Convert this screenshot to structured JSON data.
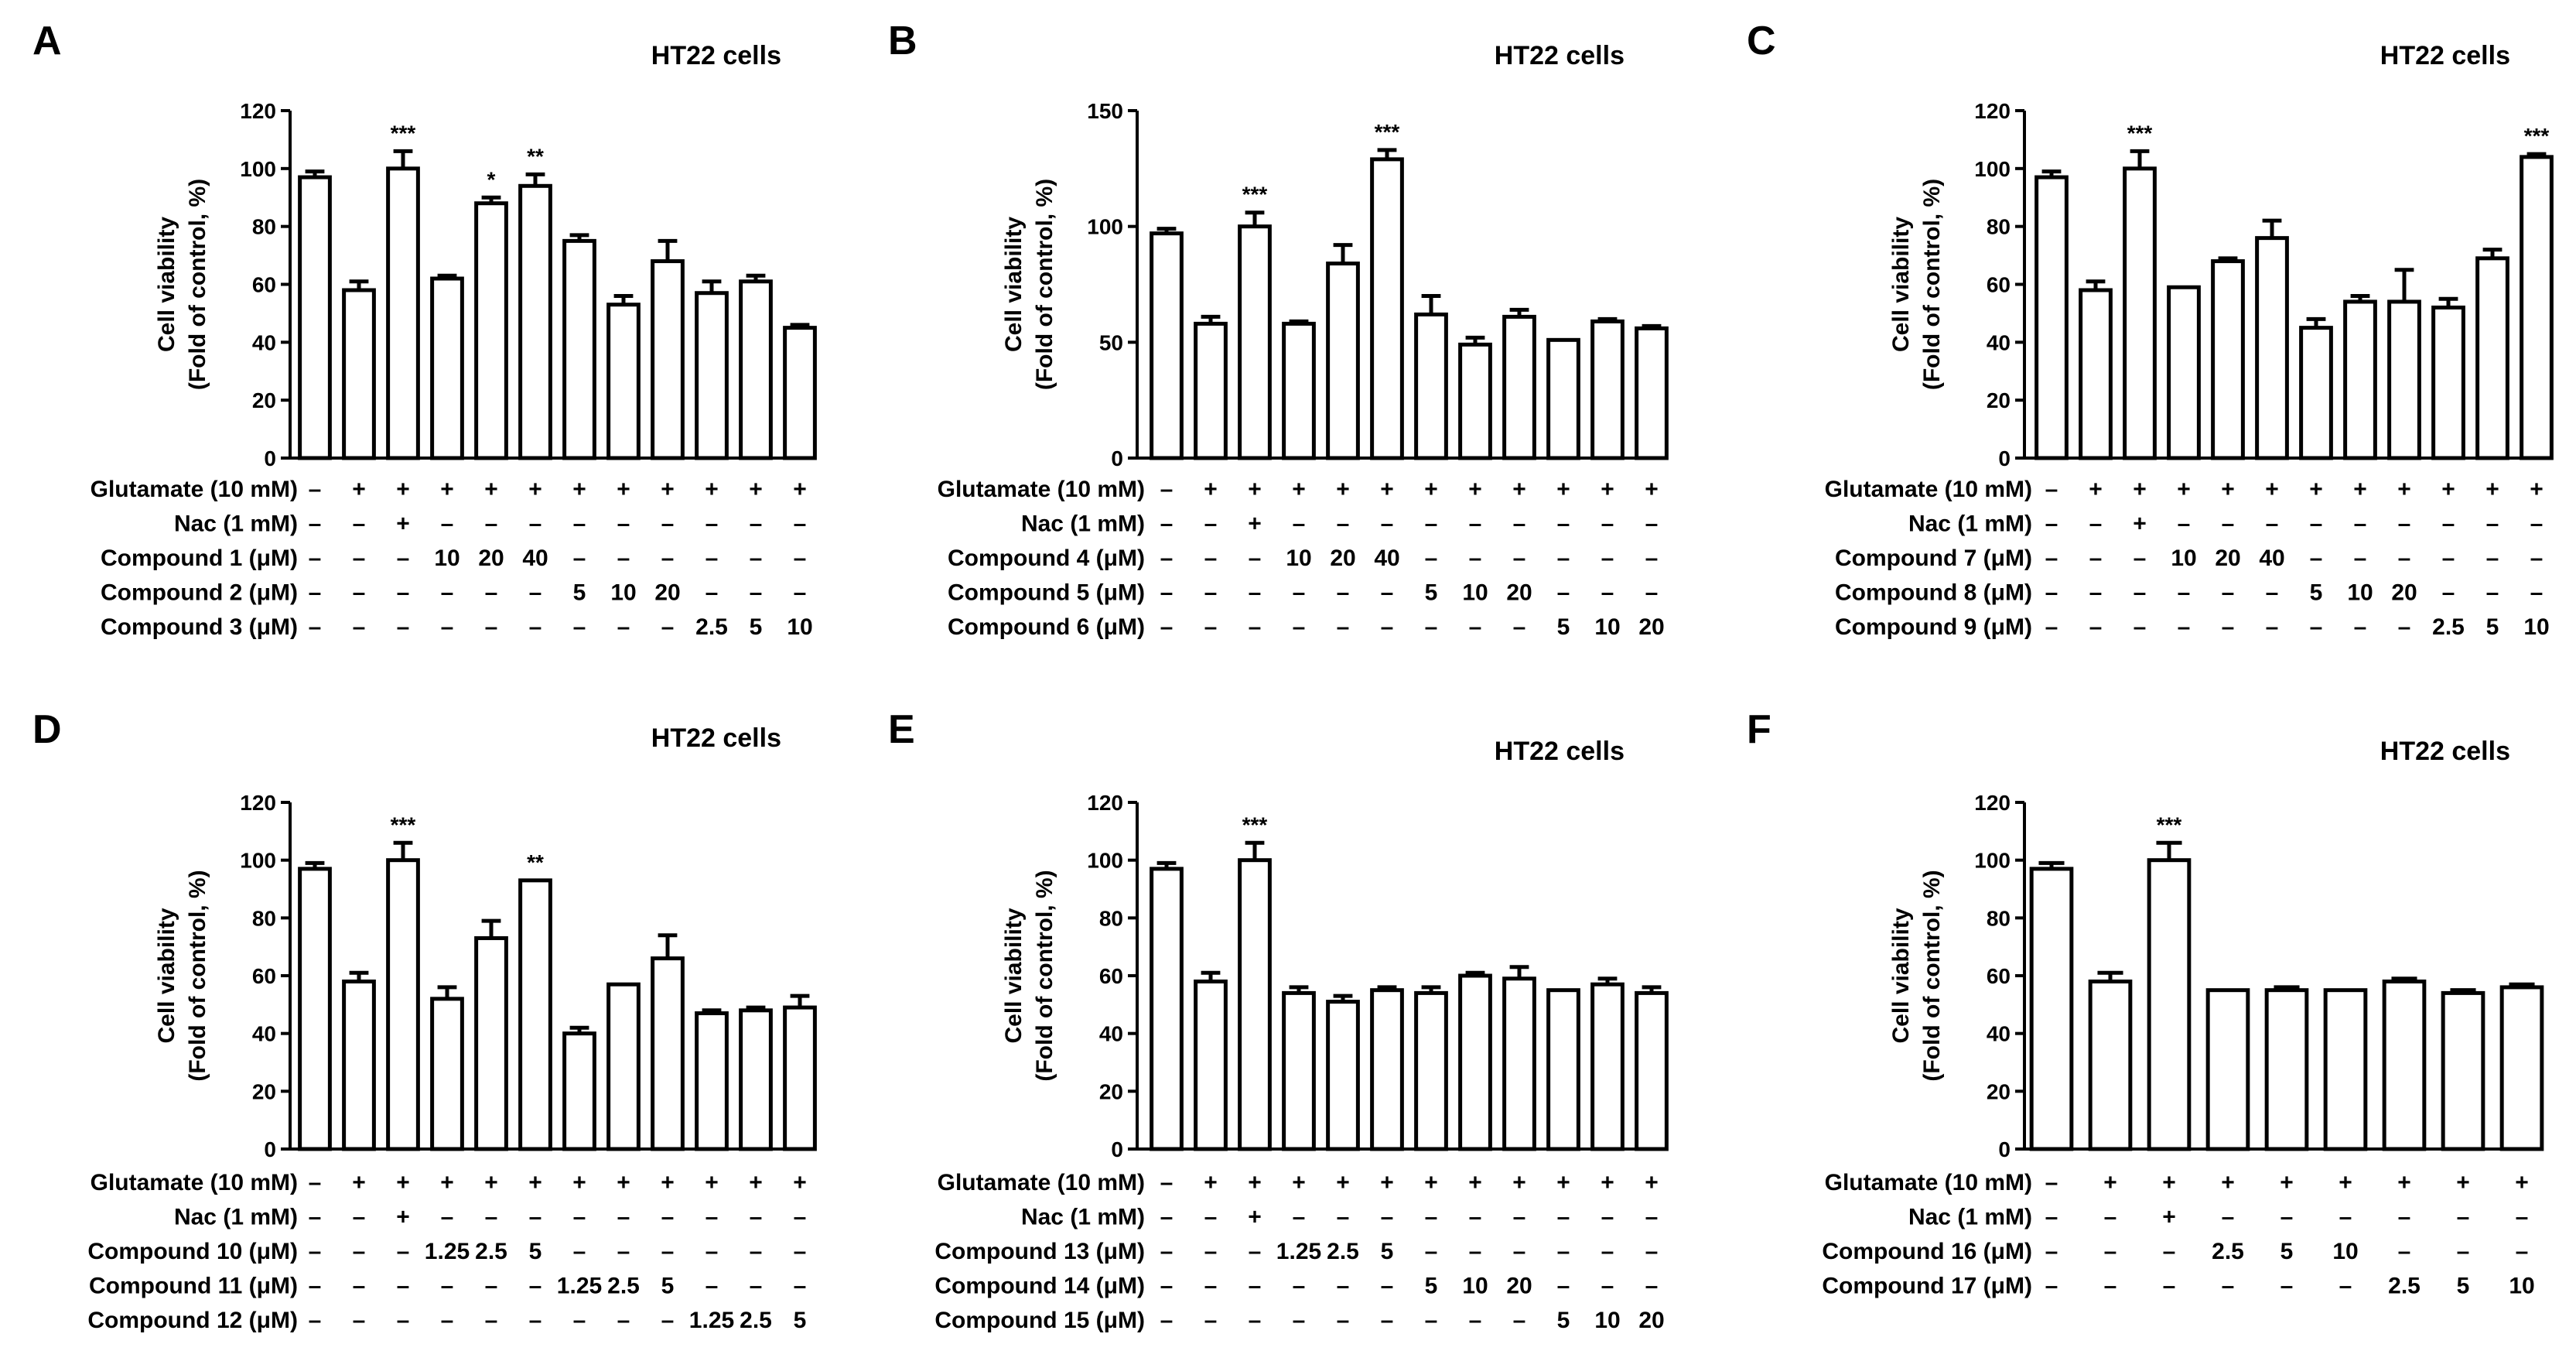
{
  "chart_data": [
    {
      "type": "bar",
      "label": "A",
      "title": "HT22 cells",
      "ylabel": [
        "Cell viability",
        "(Fold of control, %)"
      ],
      "ylim": [
        0,
        120
      ],
      "yticks": [
        "0",
        "20",
        "40",
        "60",
        "80",
        "100",
        "120"
      ],
      "values": [
        97,
        58,
        100,
        62,
        88,
        94,
        75,
        53,
        68,
        57,
        61,
        45
      ],
      "errors": [
        2,
        3,
        6,
        1,
        2,
        4,
        2,
        3,
        7,
        4,
        2,
        1
      ],
      "significance": [
        "",
        "",
        "***",
        "",
        "*",
        "**",
        "",
        "",
        "",
        "",
        "",
        ""
      ],
      "rows": [
        {
          "label": "Glutamate (10 mM)",
          "cells": [
            "–",
            "+",
            "+",
            "+",
            "+",
            "+",
            "+",
            "+",
            "+",
            "+",
            "+",
            "+"
          ]
        },
        {
          "label": "Nac (1 mM)",
          "cells": [
            "–",
            "–",
            "+",
            "–",
            "–",
            "–",
            "–",
            "–",
            "–",
            "–",
            "–",
            "–"
          ]
        },
        {
          "label": "Compound 1 (μM)",
          "cells": [
            "–",
            "–",
            "–",
            "10",
            "20",
            "40",
            "–",
            "–",
            "–",
            "–",
            "–",
            "–"
          ]
        },
        {
          "label": "Compound 2 (μM)",
          "cells": [
            "–",
            "–",
            "–",
            "–",
            "–",
            "–",
            "5",
            "10",
            "20",
            "–",
            "–",
            "–"
          ]
        },
        {
          "label": "Compound 3 (μM)",
          "cells": [
            "–",
            "–",
            "–",
            "–",
            "–",
            "–",
            "–",
            "–",
            "–",
            "2.5",
            "5",
            "10"
          ]
        }
      ]
    },
    {
      "type": "bar",
      "label": "B",
      "title": "HT22 cells",
      "ylabel": [
        "Cell viability",
        "(Fold of control, %)"
      ],
      "ylim": [
        0,
        150
      ],
      "yticks": [
        "0",
        "50",
        "100",
        "150"
      ],
      "values": [
        97,
        58,
        100,
        58,
        84,
        129,
        62,
        49,
        61,
        51,
        59,
        56
      ],
      "errors": [
        2,
        3,
        6,
        1,
        8,
        4,
        8,
        3,
        3,
        0,
        1,
        1
      ],
      "significance": [
        "",
        "",
        "***",
        "",
        "",
        "***",
        "",
        "",
        "",
        "",
        "",
        ""
      ],
      "rows": [
        {
          "label": "Glutamate (10 mM)",
          "cells": [
            "–",
            "+",
            "+",
            "+",
            "+",
            "+",
            "+",
            "+",
            "+",
            "+",
            "+",
            "+"
          ]
        },
        {
          "label": "Nac (1 mM)",
          "cells": [
            "–",
            "–",
            "+",
            "–",
            "–",
            "–",
            "–",
            "–",
            "–",
            "–",
            "–",
            "–"
          ]
        },
        {
          "label": "Compound 4 (μM)",
          "cells": [
            "–",
            "–",
            "–",
            "10",
            "20",
            "40",
            "–",
            "–",
            "–",
            "–",
            "–",
            "–"
          ]
        },
        {
          "label": "Compound 5 (μM)",
          "cells": [
            "–",
            "–",
            "–",
            "–",
            "–",
            "–",
            "5",
            "10",
            "20",
            "–",
            "–",
            "–"
          ]
        },
        {
          "label": "Compound 6 (μM)",
          "cells": [
            "–",
            "–",
            "–",
            "–",
            "–",
            "–",
            "–",
            "–",
            "–",
            "5",
            "10",
            "20"
          ]
        }
      ]
    },
    {
      "type": "bar",
      "label": "C",
      "title": "HT22 cells",
      "ylabel": [
        "Cell viability",
        "(Fold of control, %)"
      ],
      "ylim": [
        0,
        120
      ],
      "yticks": [
        "0",
        "20",
        "40",
        "60",
        "80",
        "100",
        "120"
      ],
      "values": [
        97,
        58,
        100,
        59,
        68,
        76,
        45,
        54,
        54,
        52,
        69,
        104
      ],
      "errors": [
        2,
        3,
        6,
        0,
        1,
        6,
        3,
        2,
        11,
        3,
        3,
        1
      ],
      "significance": [
        "",
        "",
        "***",
        "",
        "",
        "",
        "",
        "",
        "",
        "",
        "",
        "***"
      ],
      "rows": [
        {
          "label": "Glutamate (10 mM)",
          "cells": [
            "–",
            "+",
            "+",
            "+",
            "+",
            "+",
            "+",
            "+",
            "+",
            "+",
            "+",
            "+"
          ]
        },
        {
          "label": "Nac (1 mM)",
          "cells": [
            "–",
            "–",
            "+",
            "–",
            "–",
            "–",
            "–",
            "–",
            "–",
            "–",
            "–",
            "–"
          ]
        },
        {
          "label": "Compound 7 (μM)",
          "cells": [
            "–",
            "–",
            "–",
            "10",
            "20",
            "40",
            "–",
            "–",
            "–",
            "–",
            "–",
            "–"
          ]
        },
        {
          "label": "Compound 8 (μM)",
          "cells": [
            "–",
            "–",
            "–",
            "–",
            "–",
            "–",
            "5",
            "10",
            "20",
            "–",
            "–",
            "–"
          ]
        },
        {
          "label": "Compound 9 (μM)",
          "cells": [
            "–",
            "–",
            "–",
            "–",
            "–",
            "–",
            "–",
            "–",
            "–",
            "2.5",
            "5",
            "10"
          ]
        }
      ]
    },
    {
      "type": "bar",
      "label": "D",
      "title": "HT22 cells",
      "ylabel": [
        "Cell viability",
        "(Fold of control, %)"
      ],
      "ylim": [
        0,
        120
      ],
      "yticks": [
        "0",
        "20",
        "40",
        "60",
        "80",
        "100",
        "120"
      ],
      "values": [
        97,
        58,
        100,
        52,
        73,
        93,
        40,
        57,
        66,
        47,
        48,
        49
      ],
      "errors": [
        2,
        3,
        6,
        4,
        6,
        0,
        2,
        0,
        8,
        1,
        1,
        4
      ],
      "significance": [
        "",
        "",
        "***",
        "",
        "",
        "**",
        "",
        "",
        "",
        "",
        "",
        ""
      ],
      "rows": [
        {
          "label": "Glutamate (10 mM)",
          "cells": [
            "–",
            "+",
            "+",
            "+",
            "+",
            "+",
            "+",
            "+",
            "+",
            "+",
            "+",
            "+"
          ]
        },
        {
          "label": "Nac (1 mM)",
          "cells": [
            "–",
            "–",
            "+",
            "–",
            "–",
            "–",
            "–",
            "–",
            "–",
            "–",
            "–",
            "–"
          ]
        },
        {
          "label": "Compound 10 (μM)",
          "cells": [
            "–",
            "–",
            "–",
            "1.25",
            "2.5",
            "5",
            "–",
            "–",
            "–",
            "–",
            "–",
            "–"
          ]
        },
        {
          "label": "Compound 11 (μM)",
          "cells": [
            "–",
            "–",
            "–",
            "–",
            "–",
            "–",
            "1.25",
            "2.5",
            "5",
            "–",
            "–",
            "–"
          ]
        },
        {
          "label": "Compound 12 (μM)",
          "cells": [
            "–",
            "–",
            "–",
            "–",
            "–",
            "–",
            "–",
            "–",
            "–",
            "1.25",
            "2.5",
            "5"
          ]
        }
      ]
    },
    {
      "type": "bar",
      "label": "E",
      "title": "HT22 cells",
      "ylabel": [
        "Cell viability",
        "(Fold of control, %)"
      ],
      "ylim": [
        0,
        120
      ],
      "yticks": [
        "0",
        "20",
        "40",
        "60",
        "80",
        "100",
        "120"
      ],
      "values": [
        97,
        58,
        100,
        54,
        51,
        55,
        54,
        60,
        59,
        55,
        57,
        54
      ],
      "errors": [
        2,
        3,
        6,
        2,
        2,
        1,
        2,
        1,
        4,
        0,
        2,
        2
      ],
      "significance": [
        "",
        "",
        "***",
        "",
        "",
        "",
        "",
        "",
        "",
        "",
        "",
        ""
      ],
      "rows": [
        {
          "label": "Glutamate (10 mM)",
          "cells": [
            "–",
            "+",
            "+",
            "+",
            "+",
            "+",
            "+",
            "+",
            "+",
            "+",
            "+",
            "+"
          ]
        },
        {
          "label": "Nac (1 mM)",
          "cells": [
            "–",
            "–",
            "+",
            "–",
            "–",
            "–",
            "–",
            "–",
            "–",
            "–",
            "–",
            "–"
          ]
        },
        {
          "label": "Compound 13 (μM)",
          "cells": [
            "–",
            "–",
            "–",
            "1.25",
            "2.5",
            "5",
            "–",
            "–",
            "–",
            "–",
            "–",
            "–"
          ]
        },
        {
          "label": "Compound 14 (μM)",
          "cells": [
            "–",
            "–",
            "–",
            "–",
            "–",
            "–",
            "5",
            "10",
            "20",
            "–",
            "–",
            "–"
          ]
        },
        {
          "label": "Compound 15 (μM)",
          "cells": [
            "–",
            "–",
            "–",
            "–",
            "–",
            "–",
            "–",
            "–",
            "–",
            "5",
            "10",
            "20"
          ]
        }
      ]
    },
    {
      "type": "bar",
      "label": "F",
      "title": "HT22 cells",
      "ylabel": [
        "Cell viability",
        "(Fold of control, %)"
      ],
      "ylim": [
        0,
        120
      ],
      "yticks": [
        "0",
        "20",
        "40",
        "60",
        "80",
        "100",
        "120"
      ],
      "values": [
        97,
        58,
        100,
        55,
        55,
        55,
        58,
        54,
        56
      ],
      "errors": [
        2,
        3,
        6,
        0,
        1,
        0,
        1,
        1,
        1
      ],
      "significance": [
        "",
        "",
        "***",
        "",
        "",
        "",
        "",
        "",
        ""
      ],
      "rows": [
        {
          "label": "Glutamate (10 mM)",
          "cells": [
            "–",
            "+",
            "+",
            "+",
            "+",
            "+",
            "+",
            "+",
            "+"
          ]
        },
        {
          "label": "Nac (1 mM)",
          "cells": [
            "–",
            "–",
            "+",
            "–",
            "–",
            "–",
            "–",
            "–",
            "–"
          ]
        },
        {
          "label": "Compound 16 (μM)",
          "cells": [
            "–",
            "–",
            "–",
            "2.5",
            "5",
            "10",
            "–",
            "–",
            "–"
          ]
        },
        {
          "label": "Compound 17 (μM)",
          "cells": [
            "–",
            "–",
            "–",
            "–",
            "–",
            "–",
            "2.5",
            "5",
            "10"
          ]
        }
      ]
    }
  ]
}
